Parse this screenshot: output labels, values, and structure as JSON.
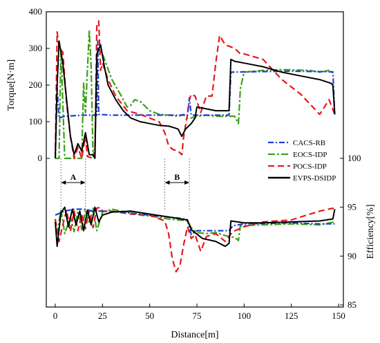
{
  "chart_data": {
    "type": "line",
    "xlabel": "Distance[m]",
    "xlim": [
      0,
      150
    ],
    "x_ticks": [
      0,
      25,
      50,
      75,
      100,
      125,
      150
    ],
    "torque_axis": {
      "label": "Torque[N·m]",
      "range": [
        0,
        400
      ],
      "ticks": [
        0,
        100,
        200,
        300,
        400
      ]
    },
    "efficiency_axis": {
      "label": "Efficiency[%]",
      "range": [
        85,
        100
      ],
      "ticks": [
        85,
        90,
        95,
        100
      ]
    },
    "legend_position": "right-middle",
    "zones": [
      {
        "label": "A",
        "x_start": 3,
        "x_end": 16
      },
      {
        "label": "B",
        "x_start": 58,
        "x_end": 71
      }
    ],
    "series": [
      {
        "name": "CACS-RB",
        "color": "#1f3fd1",
        "dash": "dashdot",
        "torque": [
          [
            0,
            0
          ],
          [
            1,
            190
          ],
          [
            2,
            110
          ],
          [
            5,
            115
          ],
          [
            15,
            118
          ],
          [
            22,
            118
          ],
          [
            22.5,
            320
          ],
          [
            23,
            120
          ],
          [
            30,
            118
          ],
          [
            50,
            118
          ],
          [
            70,
            118
          ],
          [
            71,
            165
          ],
          [
            72,
            118
          ],
          [
            80,
            118
          ],
          [
            92,
            118
          ],
          [
            93,
            235
          ],
          [
            100,
            236
          ],
          [
            125,
            238
          ],
          [
            147,
            236
          ],
          [
            148,
            120
          ]
        ],
        "efficiency": [
          [
            0,
            94.2
          ],
          [
            5,
            94.6
          ],
          [
            10,
            94.8
          ],
          [
            15,
            94.8
          ],
          [
            20,
            94.6
          ],
          [
            25,
            94.6
          ],
          [
            35,
            94.5
          ],
          [
            50,
            94.2
          ],
          [
            65,
            93.9
          ],
          [
            70,
            93.7
          ],
          [
            72,
            92.2
          ],
          [
            75,
            92.6
          ],
          [
            85,
            92.6
          ],
          [
            92,
            92.6
          ],
          [
            94,
            93.1
          ],
          [
            100,
            93.3
          ],
          [
            125,
            93.4
          ],
          [
            140,
            93.3
          ],
          [
            148,
            93.3
          ]
        ]
      },
      {
        "name": "EOCS-IDP",
        "color": "#3aa018",
        "dash": "dashdotlong",
        "torque": [
          [
            0,
            0
          ],
          [
            2,
            0
          ],
          [
            3,
            300
          ],
          [
            5,
            0
          ],
          [
            14,
            0
          ],
          [
            15,
            205
          ],
          [
            16,
            125
          ],
          [
            18,
            350
          ],
          [
            19,
            250
          ],
          [
            20,
            5
          ],
          [
            21,
            30
          ],
          [
            22,
            280
          ],
          [
            23,
            300
          ],
          [
            25,
            285
          ],
          [
            30,
            215
          ],
          [
            35,
            170
          ],
          [
            38,
            140
          ],
          [
            40,
            145
          ],
          [
            42,
            160
          ],
          [
            45,
            155
          ],
          [
            50,
            130
          ],
          [
            55,
            120
          ],
          [
            60,
            118
          ],
          [
            65,
            115
          ],
          [
            68,
            120
          ],
          [
            70,
            110
          ],
          [
            72,
            110
          ],
          [
            75,
            115
          ],
          [
            80,
            118
          ],
          [
            85,
            115
          ],
          [
            95,
            115
          ],
          [
            97,
            95
          ],
          [
            98,
            190
          ],
          [
            100,
            235
          ],
          [
            110,
            240
          ],
          [
            120,
            242
          ],
          [
            135,
            240
          ],
          [
            140,
            235
          ],
          [
            145,
            240
          ],
          [
            148,
            230
          ]
        ],
        "efficiency": [
          [
            0,
            93.7
          ],
          [
            1,
            92.3
          ],
          [
            3,
            94.8
          ],
          [
            5,
            92.3
          ],
          [
            8,
            94.0
          ],
          [
            10,
            92.5
          ],
          [
            12,
            94.6
          ],
          [
            14,
            92.7
          ],
          [
            16,
            94.7
          ],
          [
            18,
            93.4
          ],
          [
            20,
            94.9
          ],
          [
            22,
            92.6
          ],
          [
            25,
            94.5
          ],
          [
            30,
            94.8
          ],
          [
            35,
            94.6
          ],
          [
            40,
            94.5
          ],
          [
            45,
            94.2
          ],
          [
            50,
            94.1
          ],
          [
            60,
            93.8
          ],
          [
            70,
            93.6
          ],
          [
            72,
            92.9
          ],
          [
            75,
            92.4
          ],
          [
            80,
            92.3
          ],
          [
            85,
            92.4
          ],
          [
            90,
            92.1
          ],
          [
            95,
            91.9
          ],
          [
            97,
            91.6
          ],
          [
            98,
            93.1
          ],
          [
            110,
            93.2
          ],
          [
            125,
            93.3
          ],
          [
            140,
            93.2
          ],
          [
            148,
            93.5
          ]
        ]
      },
      {
        "name": "POCS-IDP",
        "color": "#e8171c",
        "dash": "dashed",
        "torque": [
          [
            0,
            0
          ],
          [
            1,
            345
          ],
          [
            2,
            300
          ],
          [
            4,
            290
          ],
          [
            6,
            150
          ],
          [
            8,
            60
          ],
          [
            10,
            0
          ],
          [
            12,
            30
          ],
          [
            14,
            0
          ],
          [
            16,
            60
          ],
          [
            17,
            5
          ],
          [
            20,
            0
          ],
          [
            21,
            5
          ],
          [
            22,
            360
          ],
          [
            23,
            375
          ],
          [
            24,
            240
          ],
          [
            25,
            260
          ],
          [
            28,
            215
          ],
          [
            32,
            170
          ],
          [
            38,
            130
          ],
          [
            45,
            120
          ],
          [
            55,
            100
          ],
          [
            58,
            70
          ],
          [
            60,
            35
          ],
          [
            62,
            25
          ],
          [
            65,
            20
          ],
          [
            67,
            10
          ],
          [
            68,
            60
          ],
          [
            70,
            120
          ],
          [
            71,
            160
          ],
          [
            72,
            175
          ],
          [
            74,
            170
          ],
          [
            77,
            125
          ],
          [
            80,
            170
          ],
          [
            83,
            170
          ],
          [
            85,
            260
          ],
          [
            87,
            335
          ],
          [
            90,
            310
          ],
          [
            95,
            300
          ],
          [
            98,
            285
          ],
          [
            100,
            285
          ],
          [
            110,
            270
          ],
          [
            120,
            215
          ],
          [
            130,
            175
          ],
          [
            140,
            120
          ],
          [
            145,
            160
          ],
          [
            148,
            120
          ]
        ],
        "efficiency": [
          [
            0,
            93.8
          ],
          [
            2,
            91.5
          ],
          [
            4,
            93.2
          ],
          [
            6,
            94.7
          ],
          [
            8,
            92.5
          ],
          [
            10,
            94.6
          ],
          [
            12,
            92.6
          ],
          [
            14,
            94.3
          ],
          [
            16,
            92.8
          ],
          [
            18,
            94.7
          ],
          [
            20,
            92.9
          ],
          [
            22,
            94.9
          ],
          [
            24,
            95.0
          ],
          [
            25,
            94.6
          ],
          [
            30,
            94.6
          ],
          [
            40,
            94.3
          ],
          [
            50,
            94.2
          ],
          [
            58,
            93.6
          ],
          [
            60,
            92.3
          ],
          [
            62,
            89.7
          ],
          [
            64,
            88.4
          ],
          [
            66,
            89.0
          ],
          [
            68,
            91.2
          ],
          [
            70,
            93.0
          ],
          [
            72,
            91.8
          ],
          [
            74,
            92.2
          ],
          [
            77,
            90.5
          ],
          [
            80,
            92.0
          ],
          [
            85,
            92.3
          ],
          [
            90,
            91.5
          ],
          [
            94,
            92.5
          ],
          [
            100,
            93.0
          ],
          [
            110,
            93.5
          ],
          [
            125,
            93.7
          ],
          [
            140,
            94.6
          ],
          [
            147,
            94.9
          ],
          [
            148,
            94.5
          ]
        ]
      },
      {
        "name": "EVPS-DSIDP",
        "color": "#000000",
        "dash": "solid",
        "torque": [
          [
            0,
            0
          ],
          [
            1,
            200
          ],
          [
            2,
            320
          ],
          [
            4,
            260
          ],
          [
            6,
            160
          ],
          [
            8,
            60
          ],
          [
            10,
            10
          ],
          [
            12,
            40
          ],
          [
            14,
            20
          ],
          [
            16,
            70
          ],
          [
            18,
            10
          ],
          [
            20,
            10
          ],
          [
            21,
            0
          ],
          [
            22,
            285
          ],
          [
            24,
            310
          ],
          [
            26,
            250
          ],
          [
            28,
            200
          ],
          [
            32,
            160
          ],
          [
            36,
            130
          ],
          [
            40,
            110
          ],
          [
            45,
            100
          ],
          [
            50,
            95
          ],
          [
            55,
            90
          ],
          [
            60,
            88
          ],
          [
            62,
            85
          ],
          [
            65,
            80
          ],
          [
            67,
            60
          ],
          [
            69,
            80
          ],
          [
            72,
            95
          ],
          [
            74,
            110
          ],
          [
            75,
            140
          ],
          [
            80,
            135
          ],
          [
            85,
            130
          ],
          [
            92,
            130
          ],
          [
            93,
            270
          ],
          [
            95,
            265
          ],
          [
            100,
            260
          ],
          [
            110,
            250
          ],
          [
            120,
            235
          ],
          [
            130,
            225
          ],
          [
            140,
            215
          ],
          [
            146,
            205
          ],
          [
            147,
            200
          ],
          [
            148,
            120
          ]
        ],
        "efficiency": [
          [
            0,
            93.5
          ],
          [
            1,
            91.0
          ],
          [
            3,
            94.4
          ],
          [
            5,
            95.0
          ],
          [
            7,
            93.0
          ],
          [
            9,
            94.8
          ],
          [
            11,
            93.2
          ],
          [
            13,
            94.6
          ],
          [
            15,
            92.6
          ],
          [
            17,
            94.7
          ],
          [
            19,
            93.2
          ],
          [
            21,
            95.0
          ],
          [
            23,
            93.5
          ],
          [
            25,
            94.2
          ],
          [
            30,
            94.5
          ],
          [
            40,
            94.6
          ],
          [
            50,
            94.3
          ],
          [
            60,
            94.0
          ],
          [
            70,
            93.7
          ],
          [
            72,
            92.7
          ],
          [
            74,
            92.4
          ],
          [
            78,
            91.8
          ],
          [
            85,
            91.5
          ],
          [
            90,
            91.0
          ],
          [
            92,
            91.3
          ],
          [
            93,
            93.6
          ],
          [
            100,
            93.4
          ],
          [
            110,
            93.4
          ],
          [
            125,
            93.5
          ],
          [
            140,
            93.6
          ],
          [
            147,
            93.8
          ],
          [
            148,
            94.8
          ]
        ]
      }
    ]
  }
}
